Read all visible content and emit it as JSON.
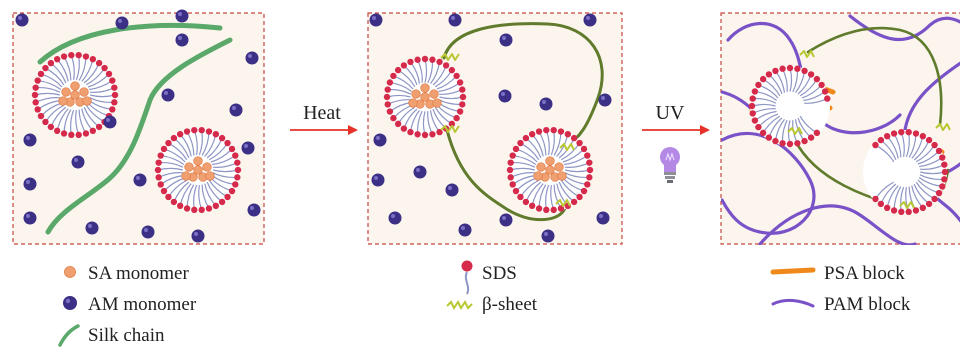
{
  "colors": {
    "panel_bg": "#fcf5ee",
    "panel_border": "#c6463f",
    "am_monomer": "#3c2f86",
    "sa_monomer": "#f0a070",
    "sds_head": "#d52a4a",
    "sds_tail": "#8e96c4",
    "silk_chain": "#5aa86a",
    "silk_chain_crosslinked": "#5f7b2b",
    "beta_sheet": "#b9c832",
    "psa_block": "#f0891b",
    "pam_block": "#7a52c8",
    "arrow": "#e6312a",
    "bulb": "#b489e6"
  },
  "steps": [
    {
      "label": "Heat"
    },
    {
      "label": "UV",
      "icon": "uv-lamp-icon"
    }
  ],
  "legend_1": [
    {
      "label": "SA monomer",
      "icon": "sa-monomer-icon"
    },
    {
      "label": "AM monomer",
      "icon": "am-monomer-icon"
    },
    {
      "label": "Silk chain",
      "icon": "silk-chain-icon"
    }
  ],
  "legend_2": [
    {
      "label": "SDS",
      "icon": "sds-icon"
    },
    {
      "label": "β-sheet",
      "icon": "beta-sheet-icon"
    }
  ],
  "legend_3": [
    {
      "label": "PSA block",
      "icon": "psa-block-icon"
    },
    {
      "label": "PAM block",
      "icon": "pam-block-icon"
    }
  ]
}
